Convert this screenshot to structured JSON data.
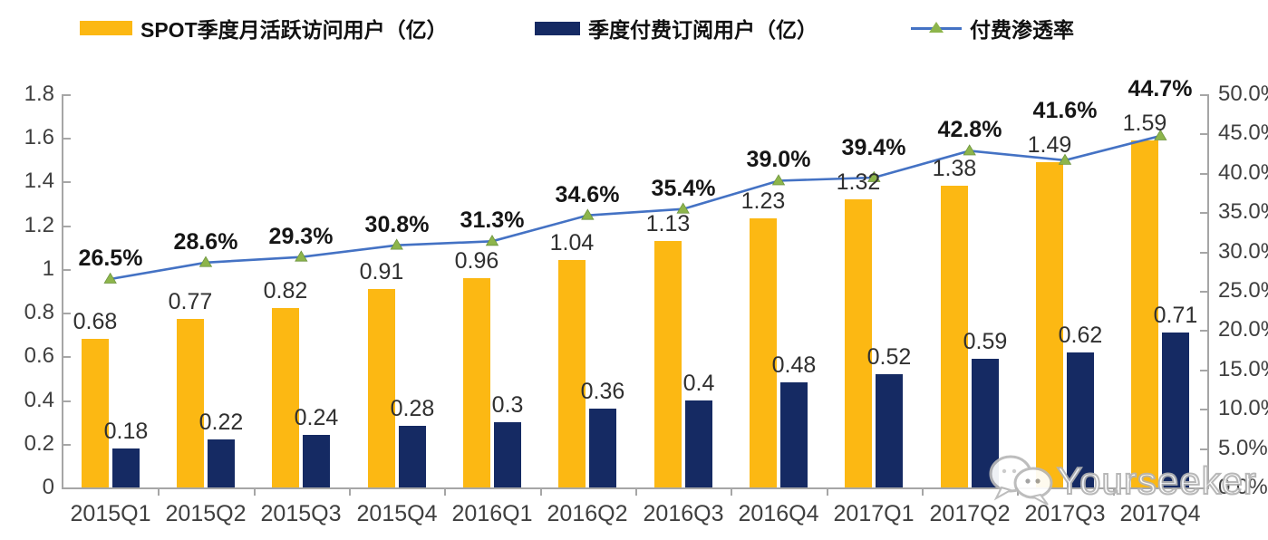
{
  "legend": {
    "mau_label": "SPOT季度月活跃访问用户（亿）",
    "paid_label": "季度付费订阅用户（亿）",
    "penetration_label": "付费渗透率"
  },
  "watermark": {
    "text": "Yourseeker"
  },
  "colors": {
    "mau_bar": "#FCB813",
    "paid_bar": "#152A63",
    "line": "#4472C4",
    "marker": "#8DB54B",
    "marker_edge": "#6d9440",
    "axis": "#A6A6A6",
    "text": "#303030"
  },
  "chart_data": {
    "type": "bar",
    "subtype": "grouped bars with secondary-axis line",
    "title": "",
    "xlabel": "",
    "ylabel_left": "",
    "ylabel_right": "",
    "grid": false,
    "legend_position": "top",
    "categories": [
      "2015Q1",
      "2015Q2",
      "2015Q3",
      "2015Q4",
      "2016Q1",
      "2016Q2",
      "2016Q3",
      "2016Q4",
      "2017Q1",
      "2017Q2",
      "2017Q3",
      "2017Q4"
    ],
    "series": [
      {
        "name": "SPOT季度月活跃访问用户（亿）",
        "type": "bar",
        "axis": "left",
        "values": [
          0.68,
          0.77,
          0.82,
          0.91,
          0.96,
          1.04,
          1.13,
          1.23,
          1.32,
          1.38,
          1.49,
          1.59
        ],
        "labels": [
          "0.68",
          "0.77",
          "0.82",
          "0.91",
          "0.96",
          "1.04",
          "1.13",
          "1.23",
          "1.32",
          "1.38",
          "1.49",
          "1.59"
        ]
      },
      {
        "name": "季度付费订阅用户（亿）",
        "type": "bar",
        "axis": "left",
        "values": [
          0.18,
          0.22,
          0.24,
          0.28,
          0.3,
          0.36,
          0.4,
          0.48,
          0.52,
          0.59,
          0.62,
          0.71
        ],
        "labels": [
          "0.18",
          "0.22",
          "0.24",
          "0.28",
          "0.3",
          "0.36",
          "0.4",
          "0.48",
          "0.52",
          "0.59",
          "0.62",
          "0.71"
        ]
      },
      {
        "name": "付费渗透率",
        "type": "line",
        "axis": "right",
        "values": [
          26.5,
          28.6,
          29.3,
          30.8,
          31.3,
          34.6,
          35.4,
          39.0,
          39.4,
          42.8,
          41.6,
          44.7
        ],
        "labels": [
          "26.5%",
          "28.6%",
          "29.3%",
          "30.8%",
          "31.3%",
          "34.6%",
          "35.4%",
          "39.0%",
          "39.4%",
          "42.8%",
          "41.6%",
          "44.7%"
        ]
      }
    ],
    "y_left": {
      "min": 0,
      "max": 1.8,
      "ticks": [
        "0",
        "0.2",
        "0.4",
        "0.6",
        "0.8",
        "1",
        "1.2",
        "1.4",
        "1.6",
        "1.8"
      ]
    },
    "y_right": {
      "min": 0,
      "max": 50,
      "ticks": [
        "0.0%",
        "5.0%",
        "10.0%",
        "15.0%",
        "20.0%",
        "25.0%",
        "30.0%",
        "35.0%",
        "40.0%",
        "45.0%",
        "50.0%"
      ]
    }
  }
}
